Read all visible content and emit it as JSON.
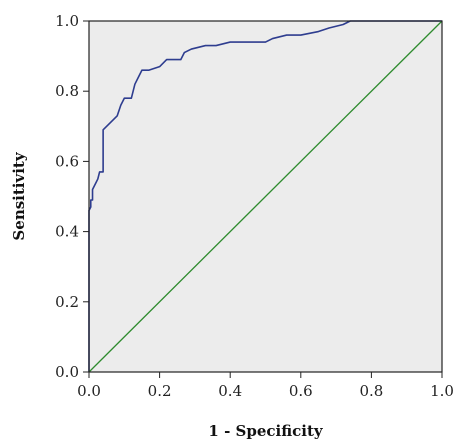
{
  "chart_data": {
    "type": "line",
    "title": "",
    "xlabel": "1 - Specificity",
    "ylabel": "Sensitivity",
    "xlim": [
      0,
      1
    ],
    "ylim": [
      0,
      1
    ],
    "x_ticks": [
      "0.0",
      "0.2",
      "0.4",
      "0.6",
      "0.8",
      "1.0"
    ],
    "y_ticks": [
      "0.0",
      "0.2",
      "0.4",
      "0.6",
      "0.8",
      "1.0"
    ],
    "grid": false,
    "legend": "none",
    "series": [
      {
        "color": "#2e3d8f",
        "x": [
          0,
          0,
          0.005,
          0.005,
          0.01,
          0.01,
          0.02,
          0.025,
          0.03,
          0.03,
          0.04,
          0.04,
          0.05,
          0.06,
          0.07,
          0.08,
          0.09,
          0.1,
          0.11,
          0.12,
          0.13,
          0.14,
          0.15,
          0.17,
          0.2,
          0.22,
          0.26,
          0.27,
          0.29,
          0.33,
          0.36,
          0.4,
          0.45,
          0.5,
          0.52,
          0.56,
          0.6,
          0.65,
          0.68,
          0.72,
          0.74,
          0.8,
          1.0
        ],
        "y": [
          0,
          0.46,
          0.47,
          0.49,
          0.49,
          0.52,
          0.54,
          0.55,
          0.57,
          0.57,
          0.57,
          0.69,
          0.7,
          0.71,
          0.72,
          0.73,
          0.76,
          0.78,
          0.78,
          0.78,
          0.82,
          0.84,
          0.86,
          0.86,
          0.87,
          0.89,
          0.89,
          0.91,
          0.92,
          0.93,
          0.93,
          0.94,
          0.94,
          0.94,
          0.95,
          0.96,
          0.96,
          0.97,
          0.98,
          0.99,
          1.0,
          1.0,
          1.0
        ]
      },
      {
        "color": "#2e8b2e",
        "x": [
          0,
          1
        ],
        "y": [
          0,
          1
        ]
      }
    ]
  },
  "colors": {
    "plot_background": "#ececec",
    "frame": "#222222"
  }
}
